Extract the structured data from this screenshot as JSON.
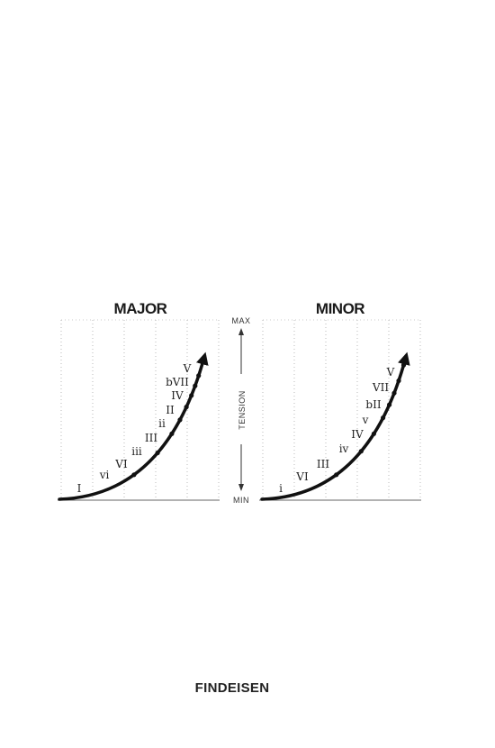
{
  "scale": {
    "max_label": "MAX",
    "axis_label": "TENSION",
    "min_label": "MIN"
  },
  "panels": [
    {
      "title": "MAJOR",
      "chords": [
        "I",
        "vi",
        "VI",
        "iii",
        "III",
        "ii",
        "II",
        "IV",
        "bVII",
        "V"
      ]
    },
    {
      "title": "MINOR",
      "chords": [
        "i",
        "VI",
        "III",
        "iv",
        "IV",
        "v",
        "bII",
        "VII",
        "V"
      ]
    }
  ],
  "brand": "FINDEISEN"
}
